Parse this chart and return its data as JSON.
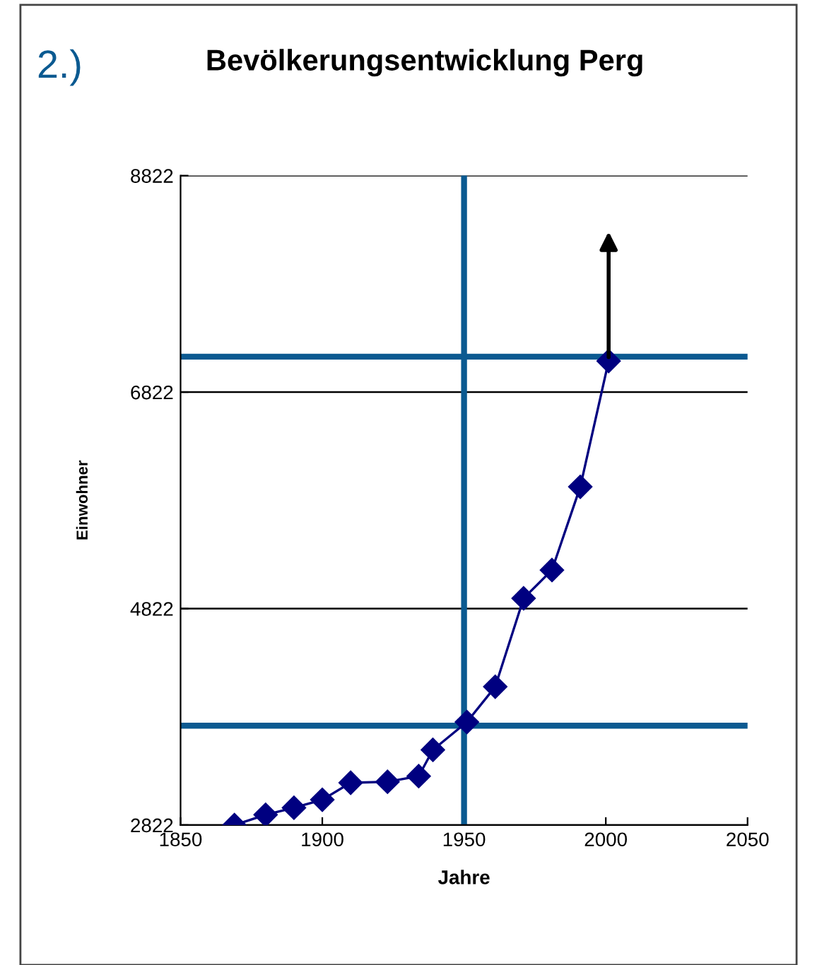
{
  "chart_data": {
    "type": "line",
    "title": "Bevölkerungsentwicklung Perg",
    "xlabel": "Jahre",
    "ylabel": "Einwohner",
    "annotations": [
      "2.)"
    ],
    "series": [
      {
        "color": "#000080",
        "x": [
          1869,
          1880,
          1890,
          1900,
          1910,
          1923,
          1934,
          1939,
          1951,
          1961,
          1971,
          1981,
          1991,
          2001
        ],
        "values": [
          2822,
          2917,
          2982,
          3056,
          3213,
          3222,
          3274,
          3517,
          3774,
          4100,
          4917,
          5178,
          5947,
          7109
        ]
      }
    ],
    "marker": "diamond",
    "line_style": "solid",
    "xlim": [
      1850,
      2050
    ],
    "xticks": [
      1850,
      1900,
      1950,
      2000,
      2050
    ],
    "ylim": [
      2822,
      8822
    ],
    "yticks": [
      2822,
      4822,
      6822,
      8822
    ],
    "grid": "y",
    "ref_lines": [
      {
        "axis": "y",
        "value": 7150,
        "color": "#0b5a91"
      },
      {
        "axis": "y",
        "value": 3740,
        "color": "#0b5a91"
      },
      {
        "axis": "x",
        "value": 1950,
        "color": "#0b5a91"
      }
    ]
  }
}
